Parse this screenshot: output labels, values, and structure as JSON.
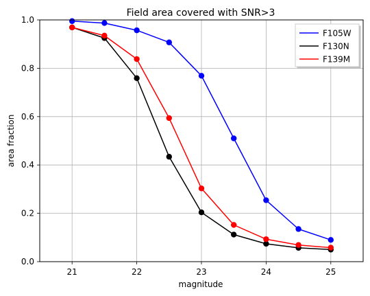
{
  "chart_data": {
    "type": "line",
    "title": "Field area covered with SNR>3",
    "xlabel": "magnitude",
    "ylabel": "area fraction",
    "xlim": [
      20.5,
      25.5
    ],
    "ylim": [
      0.0,
      1.0
    ],
    "xticks": [
      21,
      22,
      23,
      24,
      25
    ],
    "yticks": [
      0.0,
      0.2,
      0.4,
      0.6,
      0.8,
      1.0
    ],
    "xtick_labels": [
      "21",
      "22",
      "23",
      "24",
      "25"
    ],
    "ytick_labels": [
      "0.0",
      "0.2",
      "0.4",
      "0.6",
      "0.8",
      "1.0"
    ],
    "grid": true,
    "legend_position": "top-right",
    "x": [
      21,
      21.5,
      22,
      22.5,
      23,
      23.5,
      24,
      24.5,
      25
    ],
    "series": [
      {
        "name": "F105W",
        "color": "#0000ff",
        "values": [
          0.995,
          0.987,
          0.957,
          0.907,
          0.769,
          0.51,
          0.254,
          0.135,
          0.09
        ]
      },
      {
        "name": "F130N",
        "color": "#000000",
        "values": [
          0.969,
          0.925,
          0.759,
          0.434,
          0.204,
          0.112,
          0.074,
          0.057,
          0.05
        ]
      },
      {
        "name": "F139M",
        "color": "#ff0000",
        "values": [
          0.969,
          0.935,
          0.838,
          0.594,
          0.303,
          0.152,
          0.093,
          0.069,
          0.058
        ]
      }
    ]
  }
}
